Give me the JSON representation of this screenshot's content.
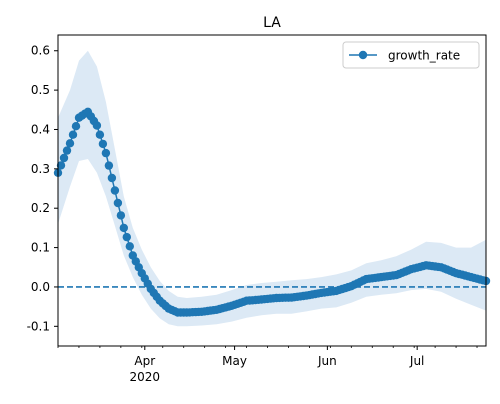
{
  "chart_data": {
    "type": "line",
    "title": "LA",
    "xlabel": "",
    "ylabel": "",
    "x_start": "2020-03-03",
    "ylim": [
      -0.15,
      0.64
    ],
    "xlim": [
      "2020-03-03",
      "2020-07-24"
    ],
    "y_ticks": [
      -0.1,
      0.0,
      0.1,
      0.2,
      0.3,
      0.4,
      0.5,
      0.6
    ],
    "x_ticks": [
      {
        "date": "2020-04-01",
        "label": "Apr",
        "sublabel": "2020"
      },
      {
        "date": "2020-05-01",
        "label": "May",
        "sublabel": ""
      },
      {
        "date": "2020-06-01",
        "label": "Jun",
        "sublabel": ""
      },
      {
        "date": "2020-07-01",
        "label": "Jul",
        "sublabel": ""
      }
    ],
    "reference_line": {
      "y": 0,
      "style": "dashed"
    },
    "legend": {
      "position": "top-right",
      "entries": [
        "growth_rate"
      ]
    },
    "grid": false,
    "colors": {
      "series": "#1f77b4",
      "band": "#dce9f5",
      "axis": "#000000"
    },
    "series": [
      {
        "name": "growth_rate",
        "dates": [
          "2020-03-03",
          "2020-03-07",
          "2020-03-10",
          "2020-03-13",
          "2020-03-16",
          "2020-03-19",
          "2020-03-22",
          "2020-03-25",
          "2020-03-28",
          "2020-03-31",
          "2020-04-03",
          "2020-04-06",
          "2020-04-09",
          "2020-04-12",
          "2020-04-15",
          "2020-04-20",
          "2020-04-25",
          "2020-04-30",
          "2020-05-05",
          "2020-05-10",
          "2020-05-15",
          "2020-05-20",
          "2020-05-25",
          "2020-05-30",
          "2020-06-04",
          "2020-06-09",
          "2020-06-14",
          "2020-06-19",
          "2020-06-24",
          "2020-06-29",
          "2020-07-04",
          "2020-07-09",
          "2020-07-14",
          "2020-07-19",
          "2020-07-24"
        ],
        "values": [
          0.29,
          0.365,
          0.43,
          0.445,
          0.41,
          0.34,
          0.245,
          0.15,
          0.08,
          0.035,
          -0.005,
          -0.035,
          -0.055,
          -0.065,
          -0.065,
          -0.063,
          -0.058,
          -0.048,
          -0.035,
          -0.032,
          -0.028,
          -0.027,
          -0.022,
          -0.015,
          -0.01,
          0.002,
          0.02,
          0.025,
          0.03,
          0.045,
          0.055,
          0.05,
          0.035,
          0.025,
          0.015
        ],
        "lower": [
          0.16,
          0.255,
          0.32,
          0.325,
          0.29,
          0.23,
          0.155,
          0.08,
          0.025,
          -0.02,
          -0.055,
          -0.08,
          -0.095,
          -0.1,
          -0.1,
          -0.098,
          -0.095,
          -0.088,
          -0.078,
          -0.072,
          -0.068,
          -0.068,
          -0.062,
          -0.055,
          -0.052,
          -0.04,
          -0.025,
          -0.02,
          -0.016,
          -0.008,
          -0.005,
          -0.012,
          -0.03,
          -0.045,
          -0.06
        ],
        "upper": [
          0.43,
          0.5,
          0.575,
          0.6,
          0.56,
          0.47,
          0.35,
          0.23,
          0.15,
          0.095,
          0.05,
          0.015,
          -0.01,
          -0.025,
          -0.028,
          -0.025,
          -0.02,
          -0.008,
          0.005,
          0.01,
          0.013,
          0.017,
          0.02,
          0.025,
          0.032,
          0.042,
          0.06,
          0.068,
          0.078,
          0.095,
          0.115,
          0.112,
          0.1,
          0.1,
          0.12
        ]
      }
    ]
  }
}
